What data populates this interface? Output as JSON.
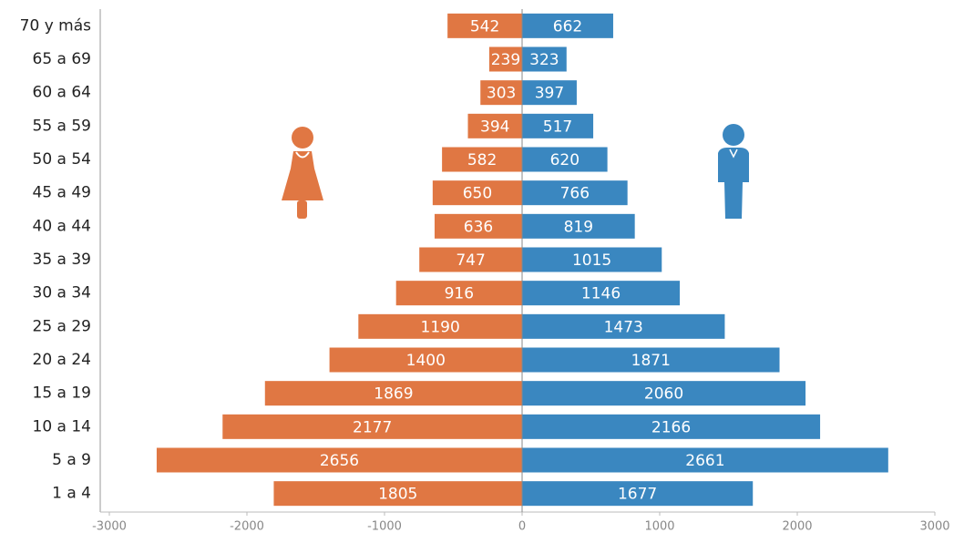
{
  "chart_data": {
    "type": "pyramid",
    "categories": [
      "70 y más",
      "65 a 69",
      "60 a 64",
      "55 a 59",
      "50 a 54",
      "45 a 49",
      "40 a 44",
      "35 a 39",
      "30 a 34",
      "25 a 29",
      "20 a 24",
      "15 a 19",
      "10 a 14",
      "5 a 9",
      "1 a 4"
    ],
    "series": [
      {
        "color": "#e07743",
        "values": [
          -542,
          -239,
          -303,
          -394,
          -582,
          -650,
          -636,
          -747,
          -916,
          -1190,
          -1400,
          -1869,
          -2177,
          -2656,
          -1805
        ],
        "value_labels": [
          "542",
          "239",
          "303",
          "394",
          "582",
          "650",
          "636",
          "747",
          "916",
          "1190",
          "1400",
          "1869",
          "2177",
          "2656",
          "1805"
        ]
      },
      {
        "color": "#3a87c0",
        "values": [
          662,
          323,
          397,
          517,
          620,
          766,
          819,
          1015,
          1146,
          1473,
          1871,
          2060,
          2166,
          2661,
          1677
        ]
      }
    ],
    "xlim": [
      -3000,
      3000
    ],
    "xticks": [
      -3000,
      -2000,
      -1000,
      0,
      1000,
      2000,
      3000
    ]
  }
}
